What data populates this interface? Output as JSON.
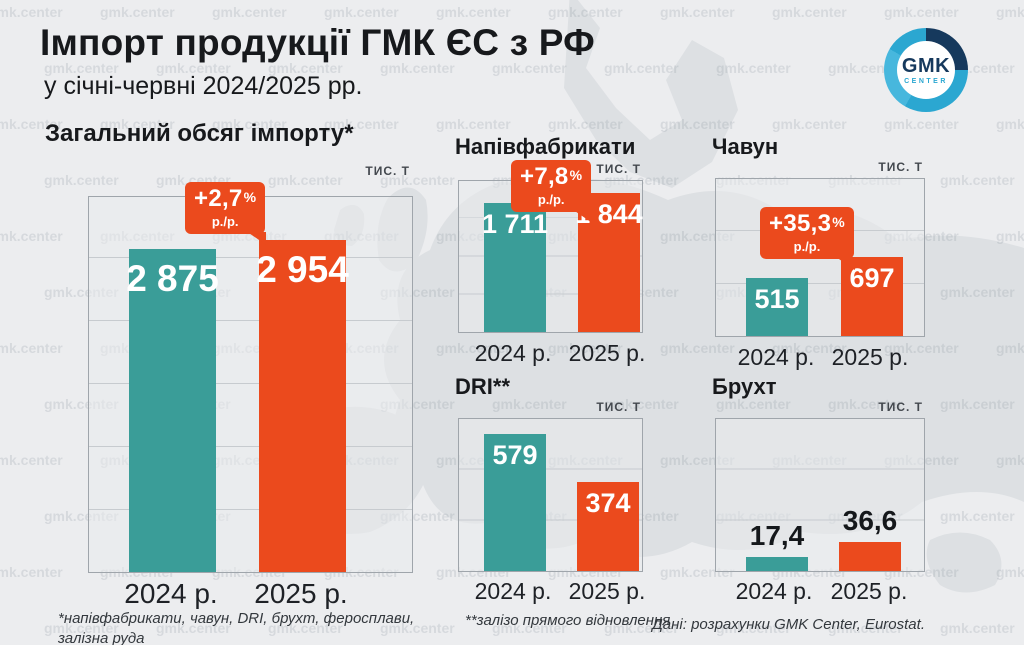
{
  "page": {
    "title": "Імпорт продукції ГМК ЄС з РФ",
    "subtitle": "у січні-червні 2024/2025 рр.",
    "watermark": "gmk.center",
    "source": "Дані: розрахунки GMK Center, Eurostat."
  },
  "logo": {
    "name": "GMK",
    "caption": "CENTER"
  },
  "colors": {
    "teal": "#3A9D98",
    "orange": "#EB4A1D",
    "logo_navy": "#16395D",
    "logo_cyan": "#2BA7D1",
    "background": "#ECEDEF"
  },
  "chart_data": [
    {
      "id": "total",
      "type": "bar",
      "title": "Загальний обсяг імпорту*",
      "ylabel": "тис. т",
      "categories": [
        "2024 р.",
        "2025 р."
      ],
      "values": [
        2875,
        2954
      ],
      "value_labels": [
        "2 875",
        "2 954"
      ],
      "badge": {
        "value": "+2,7",
        "unit": "%",
        "period": "р./р."
      },
      "ylim": [
        0,
        3340
      ],
      "grid": "horizontal",
      "footnote": "*напівфабрикати, чавун, DRI, брухт, феросплави,\nзалізна руда"
    },
    {
      "id": "semifinished",
      "type": "bar",
      "title": "Напівфабрикати",
      "ylabel": "тис. т",
      "categories": [
        "2024 р.",
        "2025 р."
      ],
      "values": [
        1711,
        1844
      ],
      "value_labels": [
        "1 711",
        "1 844"
      ],
      "badge": {
        "value": "+7,8",
        "unit": "%",
        "period": "р./р."
      },
      "ylim": [
        0,
        2010
      ],
      "grid": "horizontal"
    },
    {
      "id": "pig-iron",
      "type": "bar",
      "title": "Чавун",
      "ylabel": "тис. т",
      "categories": [
        "2024 р.",
        "2025 р."
      ],
      "values": [
        515,
        697
      ],
      "value_labels": [
        "515",
        "697"
      ],
      "badge": {
        "value": "+35,3",
        "unit": "%",
        "period": "р./р."
      },
      "ylim": [
        0,
        1390
      ],
      "grid": "horizontal"
    },
    {
      "id": "dri",
      "type": "bar",
      "title": "DRI**",
      "ylabel": "тис. т",
      "categories": [
        "2024 р.",
        "2025 р."
      ],
      "values": [
        579,
        374
      ],
      "value_labels": [
        "579",
        "374"
      ],
      "ylim": [
        0,
        640
      ],
      "grid": "horizontal",
      "footnote": "**залізо прямого відновлення"
    },
    {
      "id": "scrap",
      "type": "bar",
      "title": "Брухт",
      "ylabel": "тис. т",
      "categories": [
        "2024 р.",
        "2025 р."
      ],
      "values": [
        17.4,
        36.6
      ],
      "value_labels": [
        "17,4",
        "36,6"
      ],
      "ylim": [
        0,
        190
      ],
      "grid": "horizontal"
    }
  ]
}
